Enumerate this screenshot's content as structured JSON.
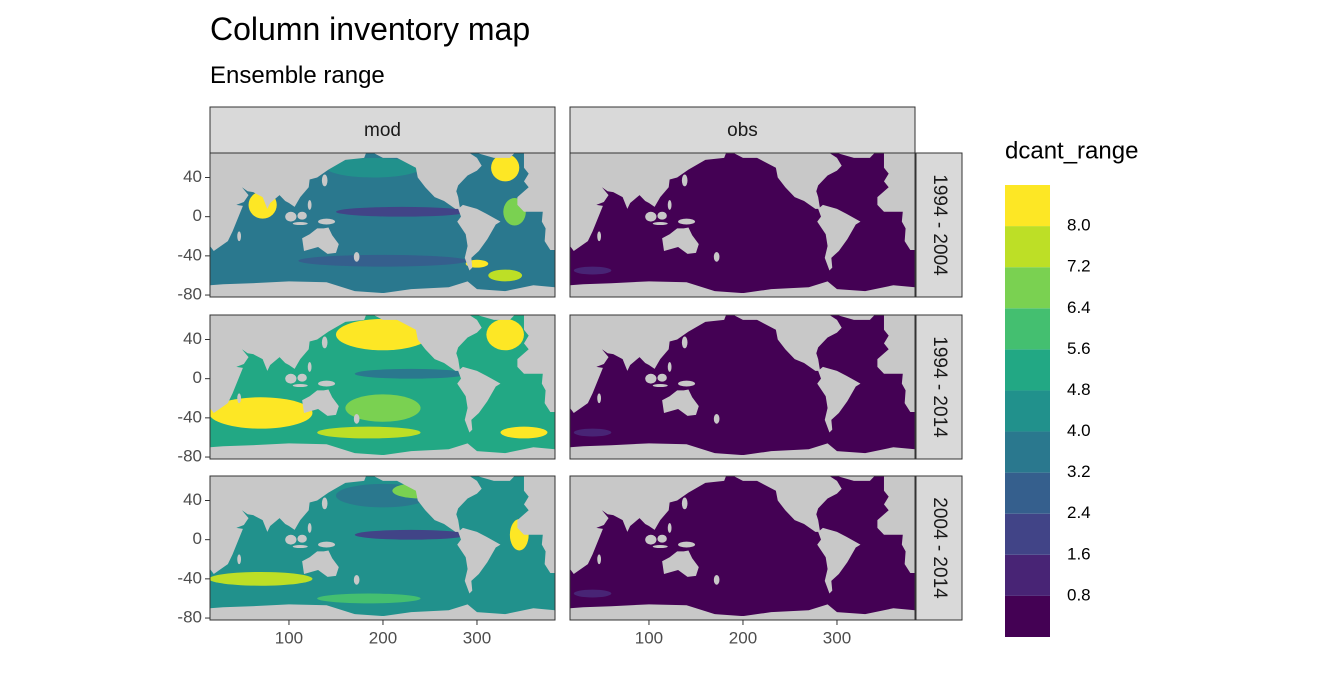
{
  "chart_data": {
    "type": "map-facets",
    "title": "Column inventory map",
    "subtitle": "Ensemble range",
    "facet_columns": [
      "mod",
      "obs"
    ],
    "facet_rows": [
      "1994 - 2004",
      "1994 - 2014",
      "2004 - 2014"
    ],
    "xlim": [
      16,
      383
    ],
    "xticks": [
      100,
      200,
      300
    ],
    "ylim": [
      -82,
      65
    ],
    "yticks": [
      40,
      0,
      -40,
      -80
    ],
    "legend": {
      "title": "dcant_range",
      "limits": [
        0,
        8.8
      ],
      "breaks": [
        0.8,
        1.6,
        2.4,
        3.2,
        {
          "value": 4,
          "label": "4.0"
        },
        4.8,
        5.6,
        6.4,
        7.2,
        {
          "value": 8,
          "label": "8.0"
        }
      ],
      "colors": [
        "#440154",
        "#482475",
        "#414487",
        "#355f8d",
        "#2a788e",
        "#21918c",
        "#22a884",
        "#44bf70",
        "#7ad151",
        "#bddf26",
        "#fde725"
      ]
    }
  }
}
